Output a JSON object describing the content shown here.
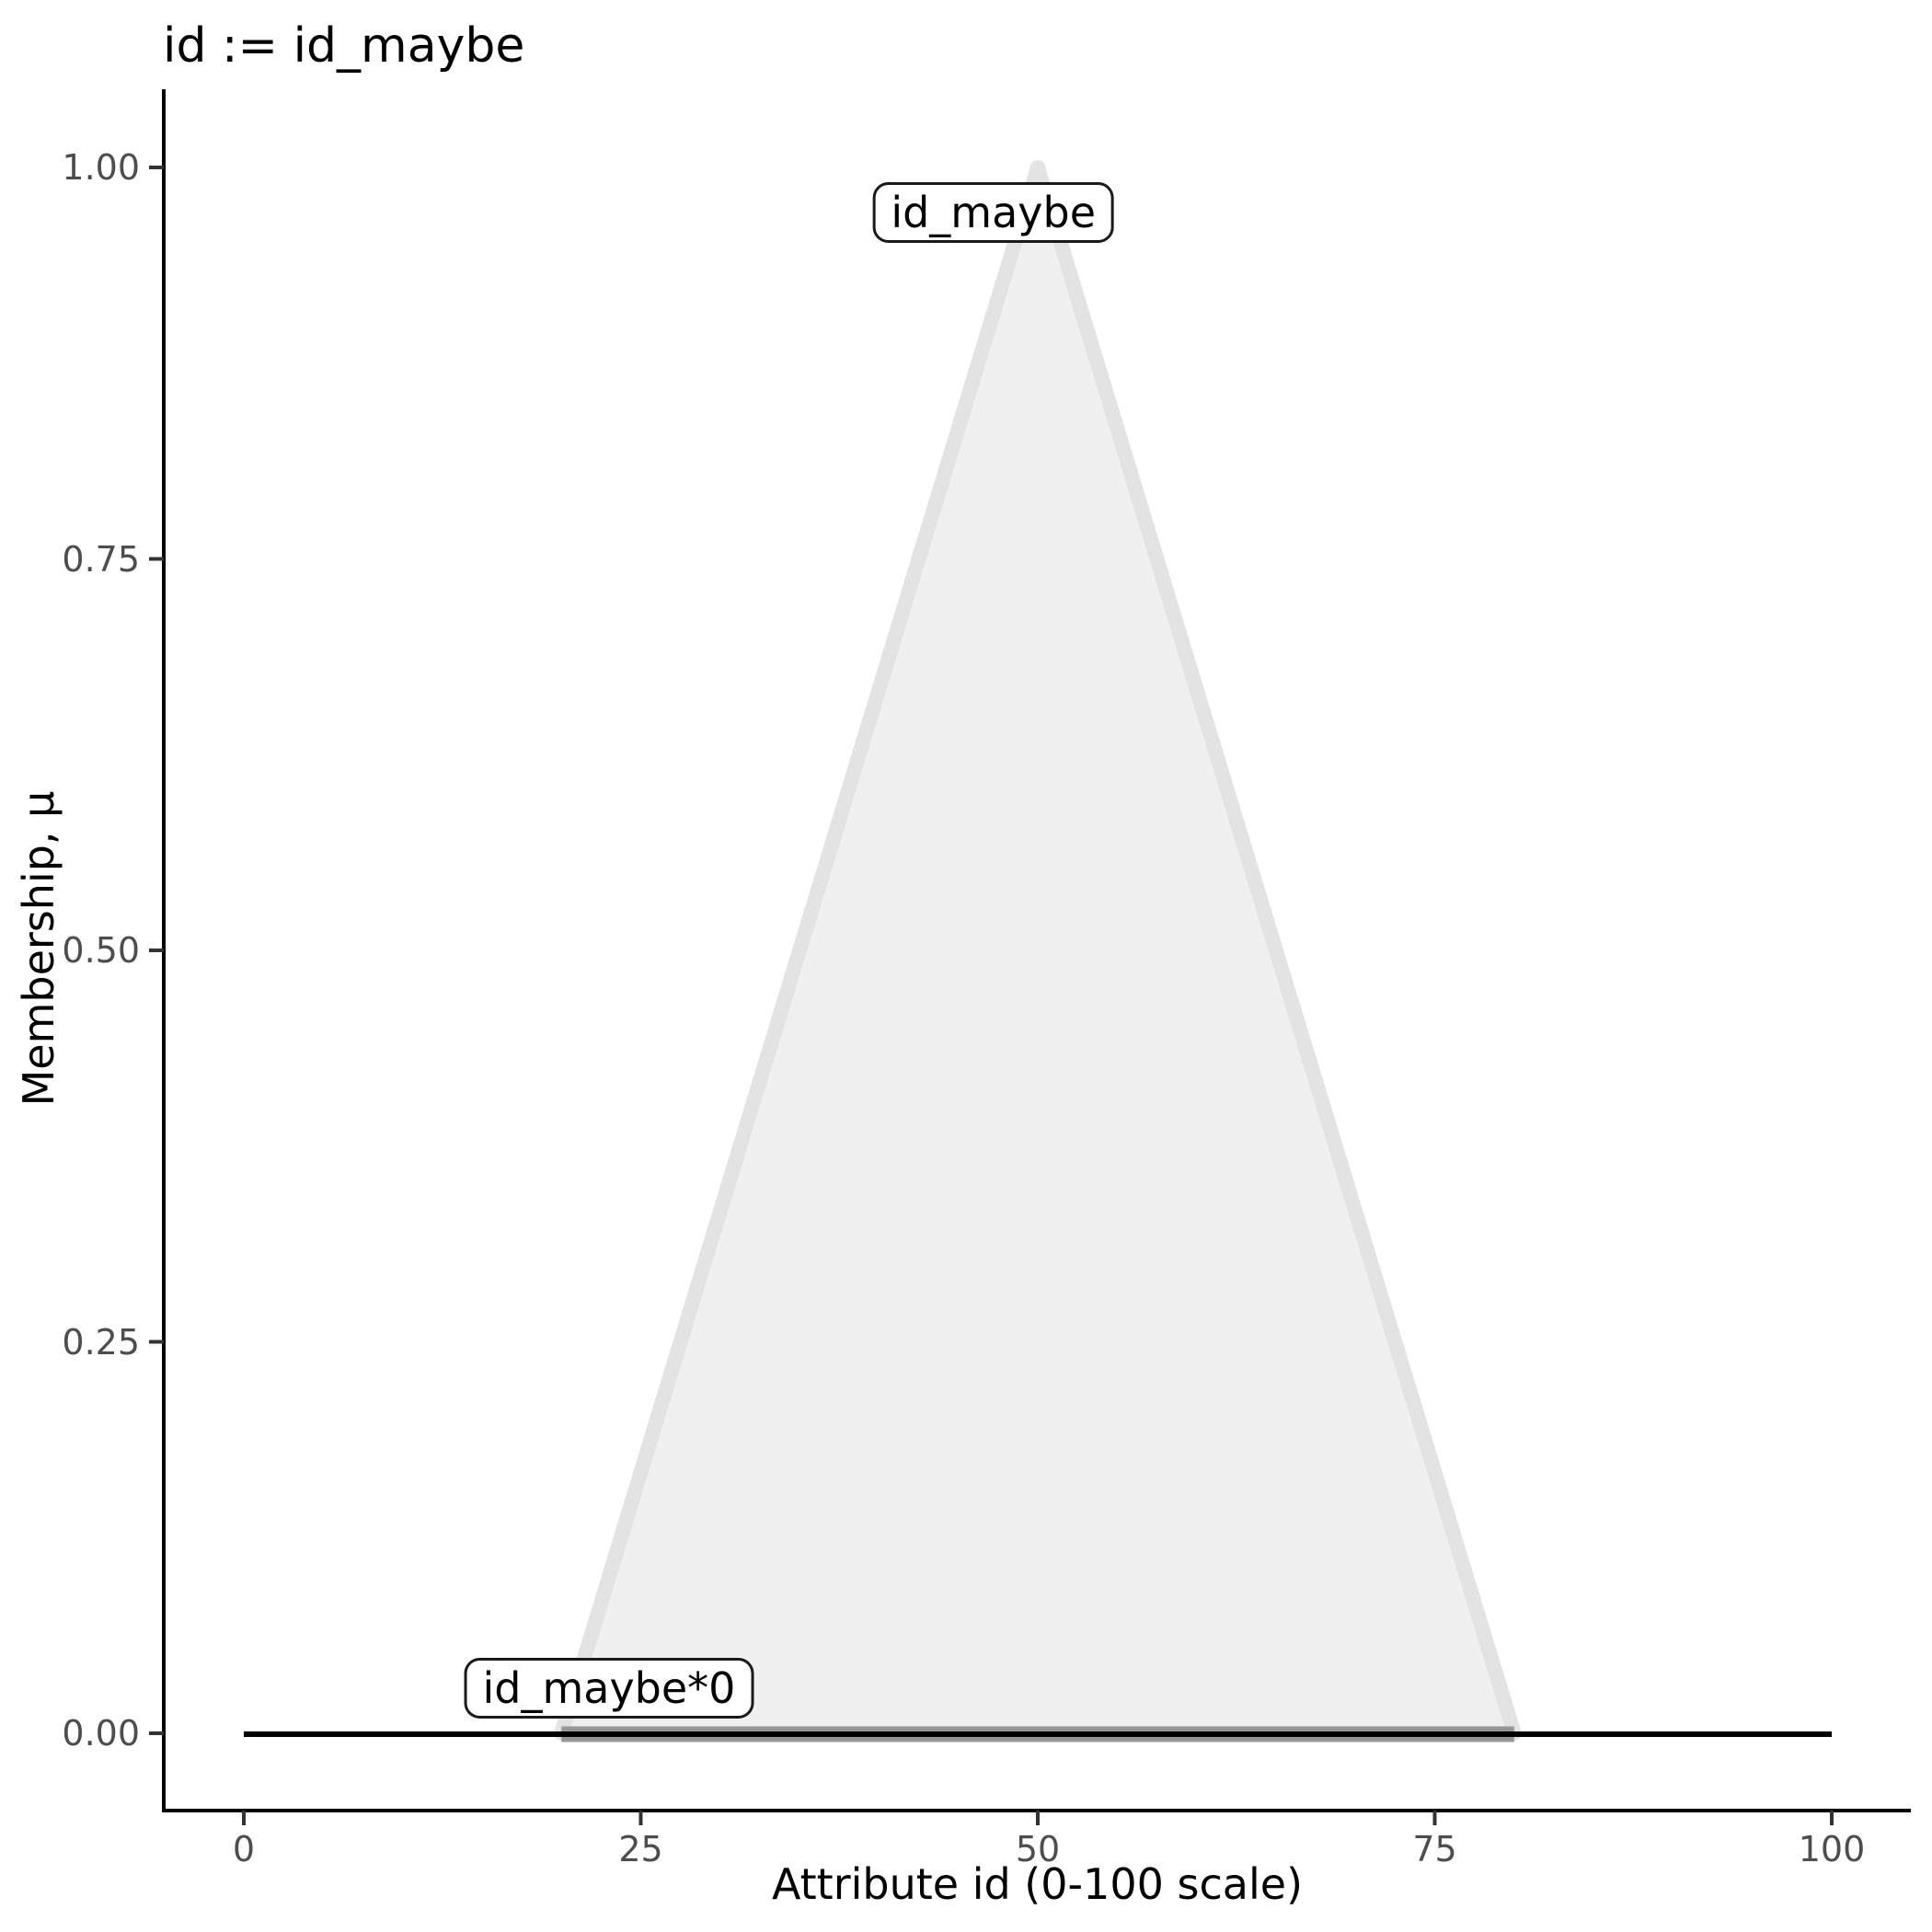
{
  "figure": {
    "title": "id := id_maybe",
    "x_axis": {
      "label": "Attribute id (0-100 scale)",
      "tick_labels": [
        "0",
        "25",
        "50",
        "75",
        "100"
      ],
      "tick_values": [
        0,
        25,
        50,
        75,
        100
      ],
      "range": [
        0,
        100
      ]
    },
    "y_axis": {
      "label": "Membership, μ",
      "tick_labels": [
        "1.00",
        "0.75",
        "0.50",
        "0.25",
        "0.00"
      ],
      "tick_values": [
        1.0,
        0.75,
        0.5,
        0.25,
        0.0
      ],
      "range": [
        0,
        1
      ]
    },
    "annotations": [
      {
        "text": "id_maybe",
        "anchor_x": 47.2,
        "anchor_y": 0.971
      },
      {
        "text": "id_maybe*0",
        "anchor_x": 23.0,
        "anchor_y": 0.029
      }
    ]
  },
  "chart_data": {
    "type": "area",
    "title": "id := id_maybe",
    "xlabel": "Attribute id (0-100 scale)",
    "ylabel": "Membership, μ",
    "xlim": [
      0,
      100
    ],
    "ylim": [
      0,
      1
    ],
    "x_ticks": [
      0,
      25,
      50,
      75,
      100
    ],
    "y_ticks": [
      1.0,
      0.75,
      0.5,
      0.25,
      0.0
    ],
    "grid": false,
    "legend": false,
    "series": [
      {
        "name": "id_maybe",
        "kind": "polygon",
        "description": "triangular membership function",
        "points": [
          [
            20,
            0
          ],
          [
            50,
            1
          ],
          [
            80,
            0
          ]
        ],
        "fill": "#f0f0f0",
        "stroke": "#e3e3e3",
        "stroke_width": 16
      },
      {
        "name": "id_maybe*0",
        "kind": "segment",
        "description": "zero-scaled membership function",
        "points": [
          [
            20,
            0
          ],
          [
            80,
            0
          ]
        ],
        "stroke": "#969696",
        "stroke_width": 17
      },
      {
        "name": "baseline-mu-zero",
        "kind": "segment",
        "description": "black baseline at membership 0",
        "points": [
          [
            0,
            0
          ],
          [
            100,
            0
          ]
        ],
        "stroke": "#000000",
        "stroke_width": 6
      }
    ],
    "colors": {
      "axis_line": "#000000",
      "tick_mark": "#333333",
      "tick_label": "#4d4d4d",
      "text": "#000000",
      "label_box_border": "#1a1a1a",
      "label_box_fill": "#ffffff"
    }
  }
}
